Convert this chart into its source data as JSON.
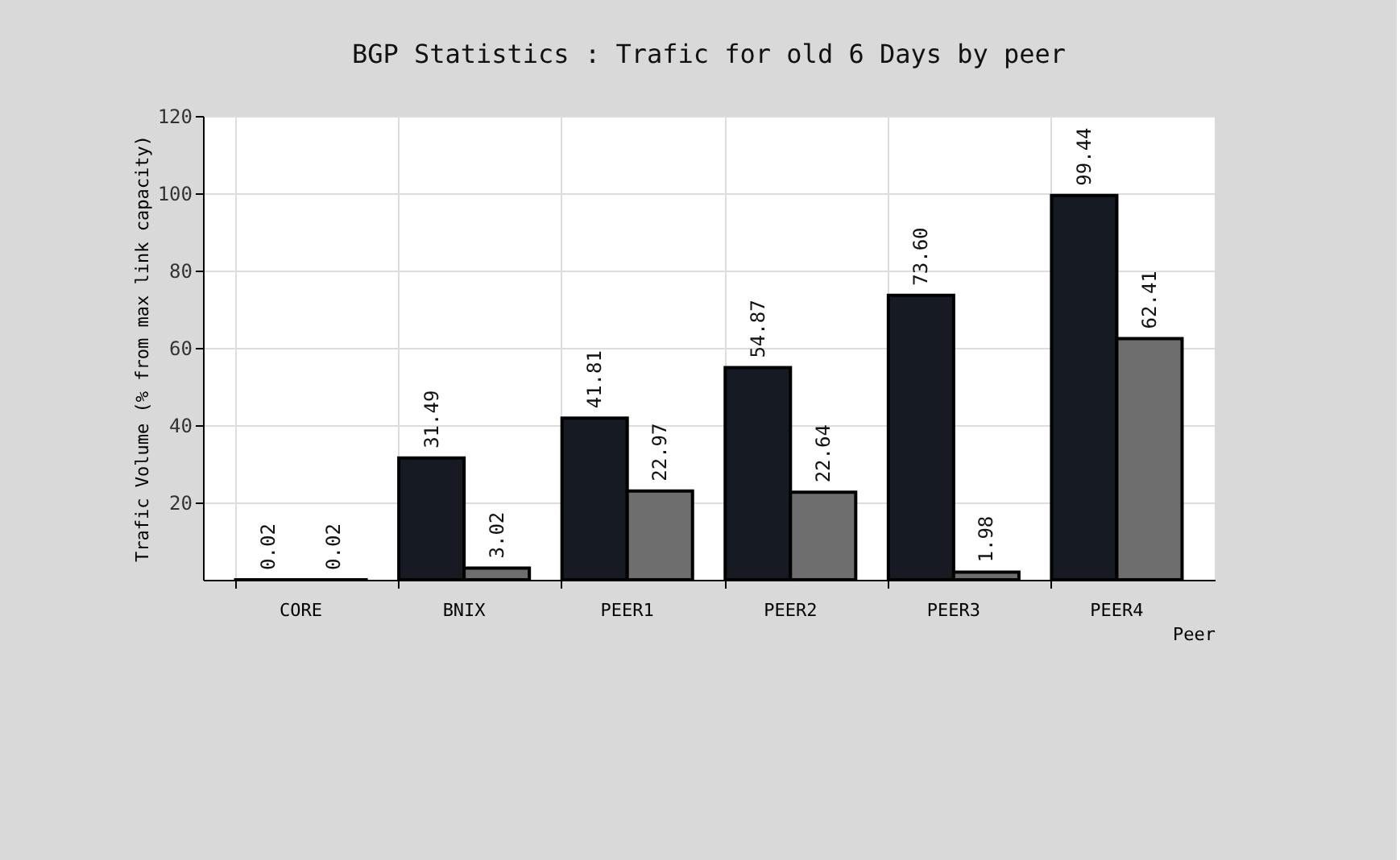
{
  "chart_data": {
    "type": "bar",
    "title": "BGP Statistics : Trafic for old 6 Days by peer",
    "xlabel": "Peer",
    "ylabel": "Trafic Volume (% from max link capacity)",
    "categories": [
      "CORE",
      "BNIX",
      "PEER1",
      "PEER2",
      "PEER3",
      "PEER4"
    ],
    "series": [
      {
        "color": "#161a22",
        "values": [
          0.02,
          31.49,
          41.81,
          54.87,
          73.6,
          99.44
        ],
        "value_labels": [
          "0.02",
          "31.49",
          "41.81",
          "54.87",
          "73.60",
          "99.44"
        ]
      },
      {
        "color": "#6e6e6e",
        "values": [
          0.02,
          3.02,
          22.97,
          22.64,
          1.98,
          62.41
        ],
        "value_labels": [
          "0.02",
          "3.02",
          "22.97",
          "22.64",
          "1.98",
          "62.41"
        ]
      }
    ],
    "ylim": [
      0,
      120
    ],
    "yticks": [
      20,
      40,
      60,
      80,
      100,
      120
    ],
    "grid": true
  }
}
